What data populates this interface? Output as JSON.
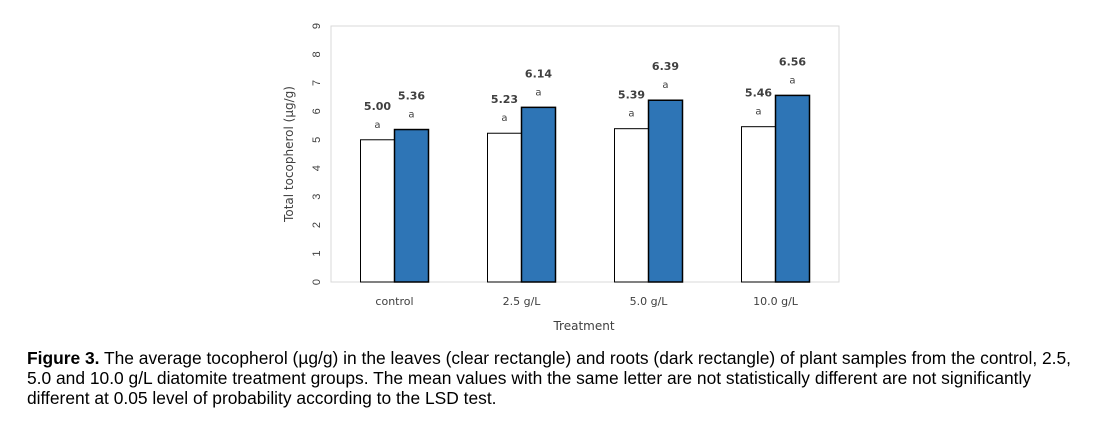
{
  "chart_data": {
    "type": "bar",
    "categories": [
      "control",
      "2.5 g/L",
      "5.0 g/L",
      "10.0 g/L"
    ],
    "series": [
      {
        "name": "leaves (clear rectangle)",
        "color": "#ffffff",
        "values": [
          5.0,
          5.23,
          5.39,
          5.46
        ],
        "value_labels": [
          "5.00",
          "5.23",
          "5.39",
          "5.46"
        ],
        "letters": [
          "a",
          "a",
          "a",
          "a"
        ]
      },
      {
        "name": "roots (dark rectangle)",
        "color": "#2e75b6",
        "values": [
          5.36,
          6.14,
          6.39,
          6.56
        ],
        "value_labels": [
          "5.36",
          "6.14",
          "6.39",
          "6.56"
        ],
        "letters": [
          "a",
          "a",
          "a",
          "a"
        ]
      }
    ],
    "yticks": [
      "0",
      "1",
      "2",
      "3",
      "4",
      "5",
      "6",
      "7",
      "8",
      "9"
    ],
    "ylim": [
      0,
      9
    ],
    "xlabel": "Treatment",
    "ylabel": "Total tocopherol (µg/g)",
    "grid": false
  },
  "caption": {
    "label": "Figure 3.",
    "text": " The average tocopherol (µg/g) in the leaves (clear rectangle) and roots (dark rectangle) of plant samples from the control, 2.5, 5.0 and 10.0 g/L diatomite treatment groups. The mean values with the same letter are not statistically different are not significantly different at 0.05 level of probability according to the LSD test."
  }
}
